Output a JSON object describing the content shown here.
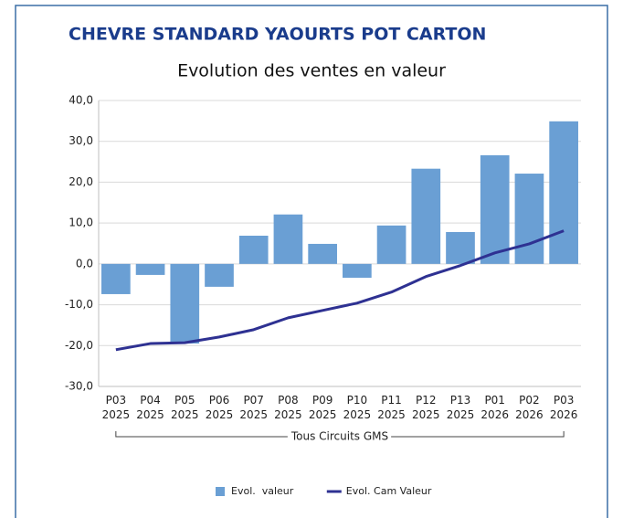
{
  "chart_data": {
    "type": "bar_line",
    "title": "CHEVRE STANDARD YAOURTS POT CARTON",
    "subtitle": "Evolution des ventes en valeur",
    "categories": [
      "P03 2025",
      "P04 2025",
      "P05 2025",
      "P06 2025",
      "P07 2025",
      "P08 2025",
      "P09 2025",
      "P10 2025",
      "P11 2025",
      "P12 2025",
      "P13 2025",
      "P01 2026",
      "P02 2026",
      "P03 2026"
    ],
    "group_label": "Tous Circuits GMS",
    "series": [
      {
        "name": "Evol.  valeur",
        "type": "bar",
        "color": "#6a9fd4",
        "values": [
          -7.4,
          -2.7,
          -19.5,
          -5.6,
          6.9,
          12.1,
          4.9,
          -3.4,
          9.4,
          23.3,
          7.8,
          26.6,
          22.1,
          34.9
        ]
      },
      {
        "name": "Evol. Cam Valeur",
        "type": "line",
        "color": "#2e3192",
        "values": [
          -21.0,
          -19.5,
          -19.3,
          -17.9,
          -16.1,
          -13.2,
          -11.4,
          -9.6,
          -6.9,
          -3.1,
          -0.4,
          2.7,
          4.9,
          8.1
        ]
      }
    ],
    "ylim": [
      -30,
      40
    ],
    "yticks": [
      {
        "value": -30,
        "label": "-30,0"
      },
      {
        "value": -20,
        "label": "-20,0"
      },
      {
        "value": -10,
        "label": "-10,0"
      },
      {
        "value": 0,
        "label": "0,0"
      },
      {
        "value": 10,
        "label": "10,0"
      },
      {
        "value": 20,
        "label": "20,0"
      },
      {
        "value": 30,
        "label": "30,0"
      },
      {
        "value": 40,
        "label": "40,0"
      }
    ],
    "grid": true
  }
}
